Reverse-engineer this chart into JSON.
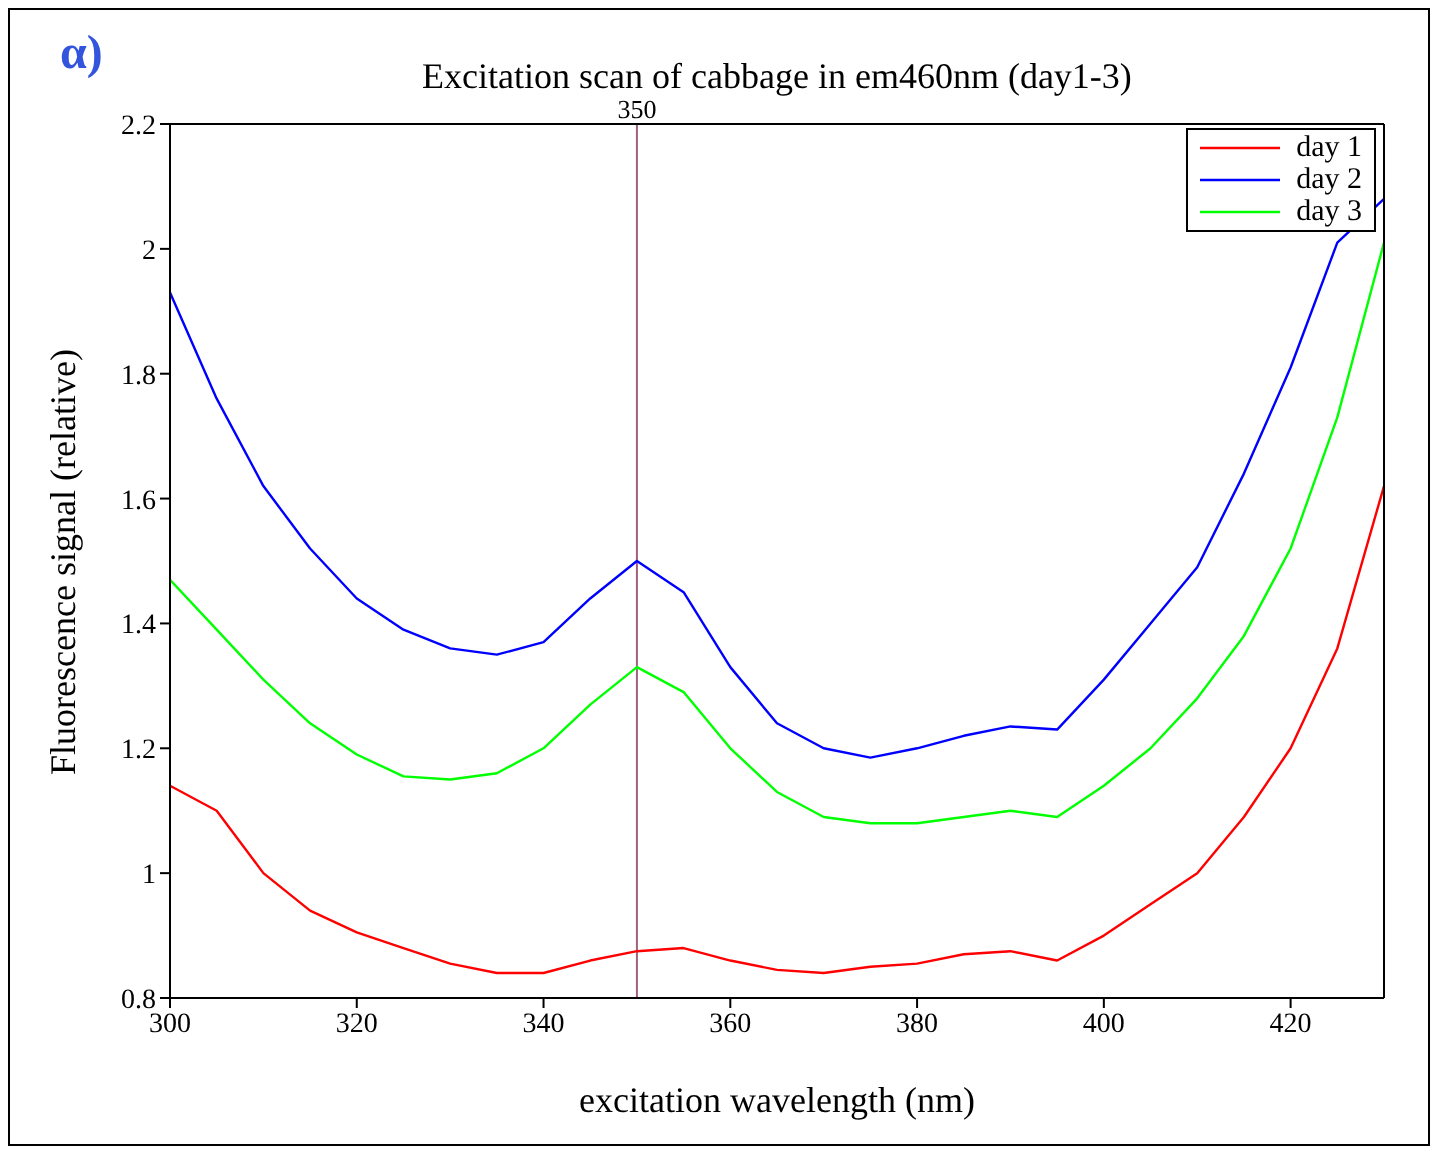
{
  "chart_data": {
    "type": "line",
    "title": "Excitation scan of cabbage in em460nm (day1-3)",
    "xlabel": "excitation wavelength (nm)",
    "ylabel": "Fluorescence signal (relative)",
    "annotations": [
      "α)"
    ],
    "x": [
      300,
      305,
      310,
      315,
      320,
      325,
      330,
      335,
      340,
      345,
      350,
      355,
      360,
      365,
      370,
      375,
      380,
      385,
      390,
      395,
      400,
      405,
      410,
      415,
      420,
      425,
      430
    ],
    "series": [
      {
        "name": "day 1",
        "color": "#ff0000",
        "values": [
          1.14,
          1.1,
          1.0,
          0.94,
          0.905,
          0.88,
          0.855,
          0.84,
          0.84,
          0.86,
          0.875,
          0.88,
          0.86,
          0.845,
          0.84,
          0.85,
          0.855,
          0.87,
          0.875,
          0.86,
          0.9,
          0.95,
          1.0,
          1.09,
          1.2,
          1.36,
          1.62
        ]
      },
      {
        "name": "day 2",
        "color": "#0000ff",
        "values": [
          1.93,
          1.76,
          1.62,
          1.52,
          1.44,
          1.39,
          1.36,
          1.35,
          1.37,
          1.44,
          1.5,
          1.45,
          1.33,
          1.24,
          1.2,
          1.185,
          1.2,
          1.22,
          1.235,
          1.23,
          1.31,
          1.4,
          1.49,
          1.64,
          1.81,
          2.01,
          2.08
        ]
      },
      {
        "name": "day 3",
        "color": "#00ff00",
        "values": [
          1.47,
          1.39,
          1.31,
          1.24,
          1.19,
          1.155,
          1.15,
          1.16,
          1.2,
          1.27,
          1.33,
          1.29,
          1.2,
          1.13,
          1.09,
          1.08,
          1.08,
          1.09,
          1.1,
          1.09,
          1.14,
          1.2,
          1.28,
          1.38,
          1.52,
          1.73,
          2.01
        ]
      }
    ],
    "xlim": [
      300,
      430
    ],
    "xticks": [
      300,
      320,
      340,
      360,
      380,
      400,
      420
    ],
    "ylim": [
      0.8,
      2.2
    ],
    "yticks": [
      0.8,
      1,
      1.2,
      1.4,
      1.6,
      1.8,
      2,
      2.2
    ],
    "ref_lines": [
      {
        "axis": "x",
        "value": 350,
        "label": "350",
        "color": "#a06080"
      }
    ],
    "grid": false,
    "legend": "top right",
    "marker": "none",
    "line_style": "solid"
  }
}
